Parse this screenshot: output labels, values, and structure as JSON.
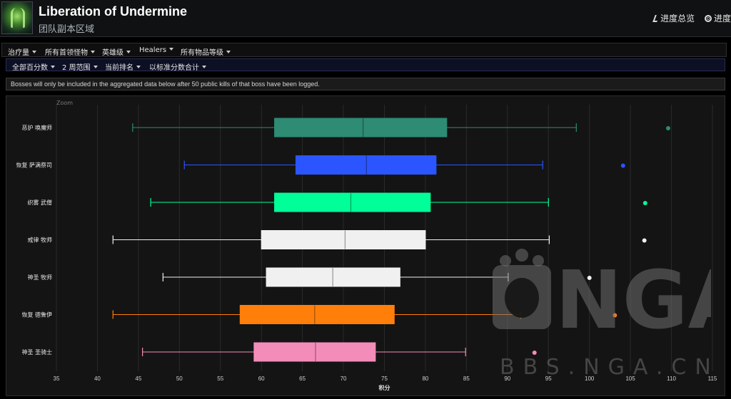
{
  "header": {
    "title": "Liberation of Undermine",
    "subtitle": "团队副本区域",
    "links": [
      {
        "icon": "run-icon",
        "label": "进度总览"
      },
      {
        "icon": "globe-icon",
        "label": "进度"
      }
    ]
  },
  "menu": {
    "row1": [
      "治疗量",
      "所有首领怪物",
      "英雄级",
      "Healers",
      "所有物品等级"
    ],
    "row2": [
      "全部百分数",
      "2 周范围",
      "当前排名",
      "以标准分数合计"
    ]
  },
  "notice": "Bosses will only be included in the aggregated data below after 50 public kills of that boss have been logged.",
  "chart": {
    "zoom_label": "Zoom"
  },
  "watermark": {
    "logo_text": "NGA",
    "site_text": "BBS.NGA.CN"
  },
  "chart_data": {
    "type": "boxplot",
    "orientation": "horizontal",
    "xlabel": "积分",
    "xlim": [
      35,
      115
    ],
    "xticks": [
      35,
      40,
      45,
      50,
      55,
      60,
      65,
      70,
      75,
      80,
      85,
      90,
      95,
      100,
      105,
      110,
      115
    ],
    "grid": true,
    "series": [
      {
        "name": "恶护 唤魔师",
        "color": "#2e8b74",
        "min": 44.3,
        "q1": 61.6,
        "median": 72.4,
        "q3": 82.6,
        "max": 98.4,
        "outliers": [
          109.6
        ]
      },
      {
        "name": "恢复 萨满祭司",
        "color": "#2b55ff",
        "min": 50.6,
        "q1": 64.2,
        "median": 72.8,
        "q3": 81.3,
        "max": 94.3,
        "outliers": [
          104.1
        ]
      },
      {
        "name": "织雾 武僧",
        "color": "#00ff98",
        "min": 46.5,
        "q1": 61.6,
        "median": 70.9,
        "q3": 80.6,
        "max": 95.0,
        "outliers": [
          106.8
        ]
      },
      {
        "name": "戒律 牧师",
        "color": "#f0f0f0",
        "min": 41.9,
        "q1": 60.0,
        "median": 70.2,
        "q3": 80.0,
        "max": 95.1,
        "outliers": [
          106.7
        ]
      },
      {
        "name": "神圣 牧师",
        "color": "#f0f0f0",
        "min": 48.0,
        "q1": 60.6,
        "median": 68.7,
        "q3": 76.9,
        "max": 90.1,
        "outliers": [
          100.0
        ]
      },
      {
        "name": "恢复 德鲁伊",
        "color": "#ff7f0a",
        "min": 41.9,
        "q1": 57.4,
        "median": 66.5,
        "q3": 76.2,
        "max": 91.6,
        "outliers": [
          103.1
        ]
      },
      {
        "name": "神圣 圣骑士",
        "color": "#f48cba",
        "min": 45.5,
        "q1": 59.1,
        "median": 66.6,
        "q3": 73.9,
        "max": 84.9,
        "outliers": [
          93.3
        ]
      }
    ]
  }
}
